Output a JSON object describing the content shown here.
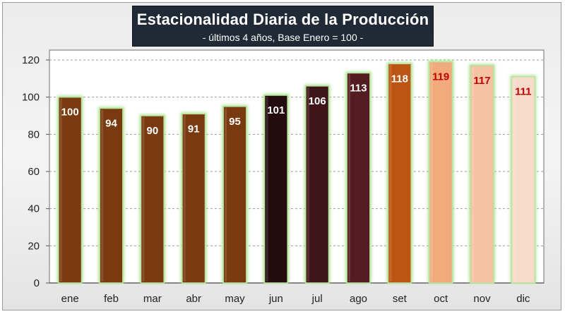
{
  "chart_data": {
    "type": "bar",
    "title": "Estacionalidad Diaria de la Producción",
    "subtitle": "- últimos 4 años, Base Enero = 100 -",
    "categories": [
      "ene",
      "feb",
      "mar",
      "abr",
      "may",
      "jun",
      "jul",
      "ago",
      "set",
      "oct",
      "nov",
      "dic"
    ],
    "values": [
      100,
      94,
      90,
      91,
      95,
      101,
      106,
      113,
      118,
      119,
      117,
      111
    ],
    "data_labels": [
      "100",
      "94",
      "90",
      "91",
      "95",
      "101",
      "106",
      "113",
      "118",
      "119",
      "117",
      "111"
    ],
    "bar_colors": [
      "#7a3a10",
      "#7a3a10",
      "#7a3a10",
      "#7a3a10",
      "#7a3a10",
      "#240b0d",
      "#3e1518",
      "#521c20",
      "#bd5512",
      "#f0aa7c",
      "#f4c3a3",
      "#f6dbcb"
    ],
    "label_colors": [
      "#ffffff",
      "#ffffff",
      "#ffffff",
      "#ffffff",
      "#ffffff",
      "#ffffff",
      "#ffffff",
      "#ffffff",
      "#ffffff",
      "#c00000",
      "#c00000",
      "#c00000"
    ],
    "ylim": [
      0,
      120
    ],
    "yticks": [
      0,
      20,
      40,
      60,
      80,
      100,
      120
    ],
    "grid": "horizontal dashed",
    "legend": "none",
    "xlabel": "",
    "ylabel": ""
  }
}
